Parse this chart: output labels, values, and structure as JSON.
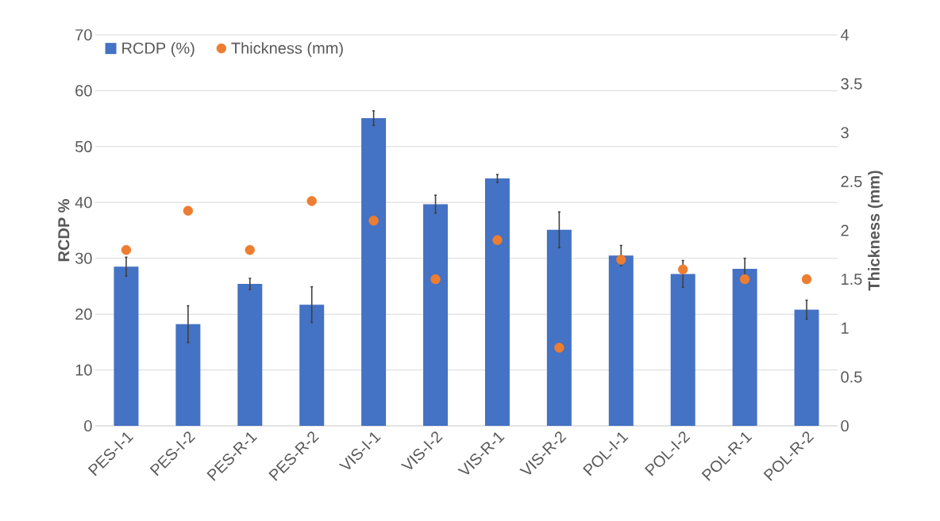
{
  "chart_data": {
    "type": "bar",
    "ylabel": "RCDP %",
    "y2label": "Thickness (mm)",
    "categories": [
      "PES-I-1",
      "PES-I-2",
      "PES-R-1",
      "PES-R-2",
      "VIS-I-1",
      "VIS-I-2",
      "VIS-R-1",
      "VIS-R-2",
      "POL-I-1",
      "POL-I-2",
      "POL-R-1",
      "POL-R-2"
    ],
    "ylim": [
      0,
      70
    ],
    "yticks": [
      0,
      10,
      20,
      30,
      40,
      50,
      60,
      70
    ],
    "y2lim": [
      0,
      4
    ],
    "y2ticks": [
      0,
      0.5,
      1,
      1.5,
      2,
      2.5,
      3,
      3.5,
      4
    ],
    "grid": "y",
    "legend": "top left",
    "series": [
      {
        "name": "RCDP (%)",
        "color": "#4472c4",
        "values": [
          28.5,
          18.2,
          25.4,
          21.7,
          55.1,
          39.7,
          44.3,
          35.1,
          30.5,
          27.2,
          28.1,
          20.8
        ],
        "errors": [
          1.7,
          3.3,
          1.0,
          3.2,
          1.3,
          1.6,
          0.7,
          3.2,
          1.8,
          2.4,
          1.9,
          1.7
        ]
      },
      {
        "name": "Thickness (mm)",
        "type": "scatter",
        "axis": "y2",
        "color": "#ed7d31",
        "values": [
          1.8,
          2.2,
          1.8,
          2.3,
          2.1,
          1.5,
          1.9,
          0.8,
          1.7,
          1.6,
          1.5,
          1.5
        ]
      }
    ]
  }
}
